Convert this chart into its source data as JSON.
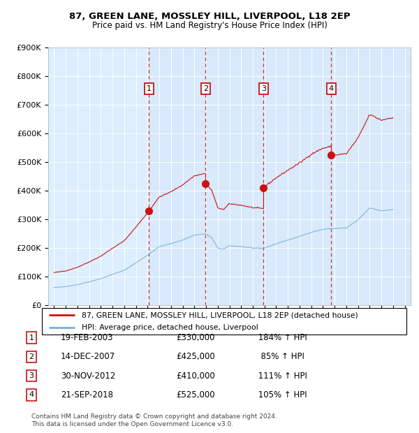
{
  "title": "87, GREEN LANE, MOSSLEY HILL, LIVERPOOL, L18 2EP",
  "subtitle": "Price paid vs. HM Land Registry's House Price Index (HPI)",
  "legend_line1": "87, GREEN LANE, MOSSLEY HILL, LIVERPOOL, L18 2EP (detached house)",
  "legend_line2": "HPI: Average price, detached house, Liverpool",
  "footer1": "Contains HM Land Registry data © Crown copyright and database right 2024.",
  "footer2": "This data is licensed under the Open Government Licence v3.0.",
  "transactions": [
    {
      "label": "1",
      "date": "19-FEB-2003",
      "price": 330000,
      "pct": "184%",
      "dir": "↑",
      "x_year": 2003.13
    },
    {
      "label": "2",
      "date": "14-DEC-2007",
      "price": 425000,
      "pct": "85%",
      "dir": "↑",
      "x_year": 2007.96
    },
    {
      "label": "3",
      "date": "30-NOV-2012",
      "price": 410000,
      "pct": "111%",
      "dir": "↑",
      "x_year": 2012.92
    },
    {
      "label": "4",
      "date": "21-SEP-2018",
      "price": 525000,
      "pct": "105%",
      "dir": "↑",
      "x_year": 2018.72
    }
  ],
  "ylim": [
    0,
    900000
  ],
  "yticks": [
    0,
    100000,
    200000,
    300000,
    400000,
    500000,
    600000,
    700000,
    800000,
    900000
  ],
  "ytick_labels": [
    "£0",
    "£100K",
    "£200K",
    "£300K",
    "£400K",
    "£500K",
    "£600K",
    "£700K",
    "£800K",
    "£900K"
  ],
  "xlim_start": 1994.5,
  "xlim_end": 2025.5,
  "hpi_color": "#7bafd4",
  "price_color": "#cc1111",
  "transaction_box_color": "#cc1111",
  "background_color": "#ddeeff",
  "grid_color": "#ccddee",
  "owned_bg_color": "#d0e4f7"
}
